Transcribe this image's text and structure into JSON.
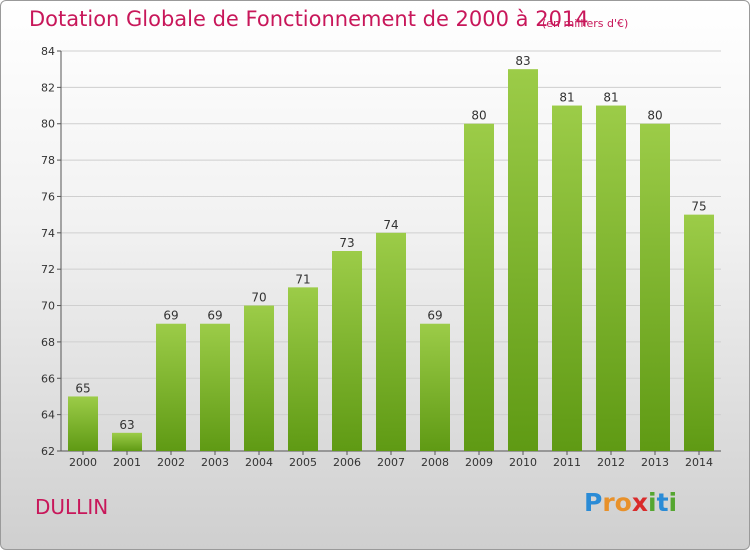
{
  "chart_data": {
    "type": "bar",
    "title": "Dotation Globale de Fonctionnement de 2000 à 2014",
    "subtitle": "(en milliers d'€)",
    "categories": [
      "2000",
      "2001",
      "2002",
      "2003",
      "2004",
      "2005",
      "2006",
      "2007",
      "2008",
      "2009",
      "2010",
      "2011",
      "2012",
      "2013",
      "2014"
    ],
    "values": [
      65,
      63,
      69,
      69,
      70,
      71,
      73,
      74,
      69,
      80,
      83,
      81,
      81,
      80,
      75
    ],
    "ylim": [
      62,
      84
    ],
    "yticks": [
      62,
      64,
      66,
      68,
      70,
      72,
      74,
      76,
      78,
      80,
      82,
      84
    ],
    "grid": true,
    "bar_color_top": "#9ccc48",
    "bar_color_bottom": "#5f9a14"
  },
  "commune": "DULLIN",
  "logo": {
    "letters": [
      "P",
      "r",
      "o",
      "x",
      "i",
      "t",
      "i"
    ],
    "colors": [
      "#2a8bd6",
      "#e8912a",
      "#e8912a",
      "#d92b2b",
      "#55a630",
      "#2a8bd6",
      "#55a630"
    ]
  }
}
